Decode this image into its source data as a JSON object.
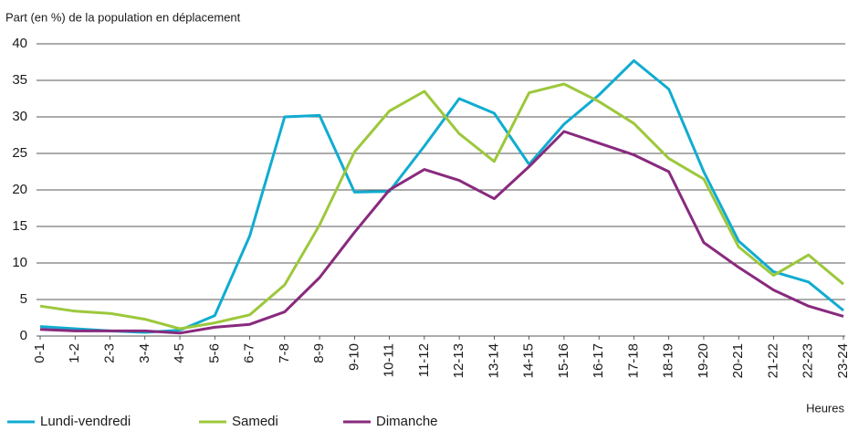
{
  "chart_data": {
    "type": "line",
    "y_label": "Part (en %) de la population en déplacement",
    "x_label": "Heures",
    "categories": [
      "0-1",
      "1-2",
      "2-3",
      "3-4",
      "4-5",
      "5-6",
      "6-7",
      "7-8",
      "8-9",
      "9-10",
      "10-11",
      "11-12",
      "12-13",
      "13-14",
      "14-15",
      "15-16",
      "16-17",
      "17-18",
      "18-19",
      "19-20",
      "20-21",
      "21-22",
      "22-23",
      "23-24"
    ],
    "series": [
      {
        "name": "Lundi-vendredi",
        "color": "#10acd0",
        "values": [
          1.3,
          1.0,
          0.7,
          0.5,
          0.8,
          2.8,
          13.7,
          30.0,
          30.2,
          19.7,
          19.8,
          26.0,
          32.5,
          30.5,
          23.5,
          29.0,
          33.0,
          37.7,
          33.8,
          22.5,
          13.0,
          8.8,
          7.4,
          3.5
        ]
      },
      {
        "name": "Samedi",
        "color": "#9cc83c",
        "values": [
          4.1,
          3.4,
          3.1,
          2.3,
          1.0,
          1.8,
          2.9,
          7.0,
          15.2,
          25.2,
          30.8,
          33.5,
          27.7,
          23.9,
          33.3,
          34.5,
          32.1,
          29.1,
          24.3,
          21.5,
          12.2,
          8.3,
          11.1,
          7.1
        ]
      },
      {
        "name": "Dimanche",
        "color": "#882a7e",
        "values": [
          0.9,
          0.7,
          0.7,
          0.7,
          0.4,
          1.2,
          1.6,
          3.3,
          8.0,
          14.2,
          20.0,
          22.8,
          21.3,
          18.8,
          23.2,
          28.0,
          26.4,
          24.8,
          22.5,
          12.8,
          9.4,
          6.3,
          4.1,
          2.7
        ]
      }
    ],
    "ylim": [
      0,
      40
    ],
    "yticks": [
      0,
      5,
      10,
      15,
      20,
      25,
      30,
      35,
      40
    ],
    "grid": true
  }
}
